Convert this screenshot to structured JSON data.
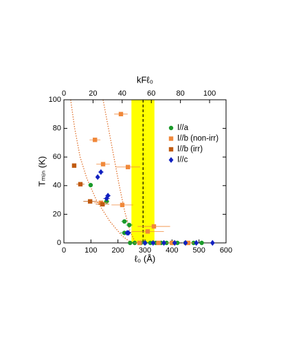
{
  "chart_data": {
    "type": "scatter",
    "xlabel": "ℓ₀ (Å)",
    "ylabel": "Tₘᵢₙ (K)",
    "x2label": "kFℓ₀",
    "xlim": [
      0,
      600
    ],
    "xticks": [
      0,
      100,
      200,
      300,
      400,
      500,
      600
    ],
    "ylim": [
      0,
      100
    ],
    "yticks": [
      0,
      20,
      40,
      60,
      80,
      100
    ],
    "x2lim": [
      0,
      111.3
    ],
    "x2ticks": [
      0,
      20,
      40,
      60,
      80,
      100
    ],
    "shaded_region": {
      "xlim": [
        250,
        335
      ],
      "color": "#ffff00"
    },
    "reference_line": {
      "x": 293,
      "color": "#000000"
    },
    "curves": [
      {
        "color": "#e0702a",
        "x": [
          25,
          40,
          60,
          85,
          120,
          170,
          215,
          250
        ],
        "values": [
          100,
          80,
          60,
          45,
          30,
          15,
          5,
          0
        ]
      },
      {
        "color": "#e0702a",
        "x": [
          145,
          165,
          185,
          205,
          225,
          245,
          265
        ],
        "values": [
          100,
          80,
          60,
          40,
          22,
          8,
          0
        ]
      }
    ],
    "series": [
      {
        "name": "I//a",
        "color": "#1a9a2a",
        "marker": "circle",
        "x": [
          99,
          158,
          224,
          242,
          224,
          245,
          262,
          285,
          300,
          320,
          340,
          360,
          380,
          400,
          420,
          450,
          480,
          510
        ],
        "values": [
          40.4,
          29,
          15,
          12.5,
          7,
          0,
          0,
          0,
          0,
          0,
          0,
          0,
          0,
          0,
          0,
          0,
          0,
          0
        ],
        "x_errors": [
          8,
          10,
          12,
          12,
          15,
          5,
          5,
          5,
          5,
          5,
          5,
          5,
          5,
          5,
          5,
          5,
          5,
          5
        ]
      },
      {
        "name": "I//b (non-irr)",
        "color": "#f0883a",
        "marker": "square",
        "x": [
          211,
          115,
          145,
          237,
          137,
          216,
          310,
          333,
          280,
          350,
          400,
          460
        ],
        "values": [
          90,
          72,
          55,
          53,
          28,
          26.5,
          8,
          11.5,
          0,
          0,
          0,
          0
        ],
        "x_errors": [
          25,
          20,
          25,
          45,
          25,
          40,
          60,
          60,
          20,
          20,
          20,
          20
        ]
      },
      {
        "name": "I//b (irr)",
        "color": "#c05a10",
        "marker": "square",
        "x": [
          38,
          61,
          97,
          143
        ],
        "values": [
          54,
          41,
          29,
          27
        ],
        "x_errors": [
          8,
          15,
          25,
          25
        ]
      },
      {
        "name": "I//c",
        "color": "#1020c0",
        "marker": "diamond",
        "x": [
          137,
          125,
          163,
          158,
          234,
          239,
          300,
          330,
          370,
          410,
          450,
          490,
          550
        ],
        "values": [
          49.5,
          46,
          33,
          31,
          7,
          7,
          0,
          0,
          0,
          0,
          0,
          0,
          0
        ],
        "x_errors": [
          10,
          8,
          10,
          12,
          10,
          10,
          5,
          5,
          5,
          5,
          5,
          5,
          5
        ]
      }
    ]
  }
}
